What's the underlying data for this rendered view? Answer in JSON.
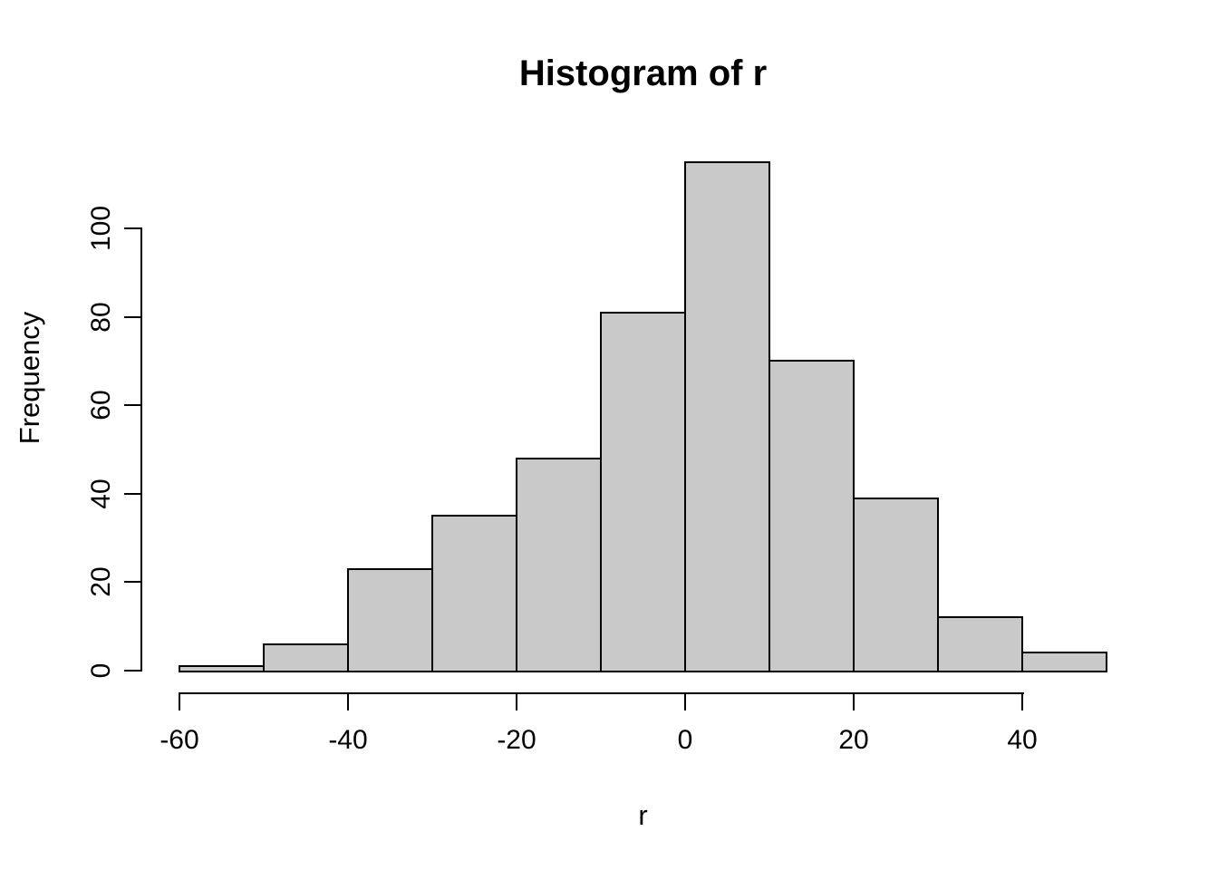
{
  "chart_data": {
    "type": "bar",
    "subtype": "histogram",
    "title": "Histogram of r",
    "xlabel": "r",
    "ylabel": "Frequency",
    "bin_edges": [
      -60,
      -50,
      -40,
      -30,
      -20,
      -10,
      0,
      10,
      20,
      30,
      40,
      50
    ],
    "counts": [
      1,
      6,
      23,
      35,
      48,
      81,
      115,
      70,
      39,
      12,
      4
    ],
    "x_ticks": [
      -60,
      -40,
      -20,
      0,
      20,
      40
    ],
    "y_ticks": [
      0,
      20,
      40,
      60,
      80,
      100
    ],
    "xlim": [
      -60,
      50
    ],
    "ylim": [
      0,
      115
    ],
    "grid": "off",
    "legend": "none",
    "bar_fill": "#C9C9C9",
    "bar_stroke": "#000000",
    "axis_color": "#000000",
    "background": "#FFFFFF"
  }
}
